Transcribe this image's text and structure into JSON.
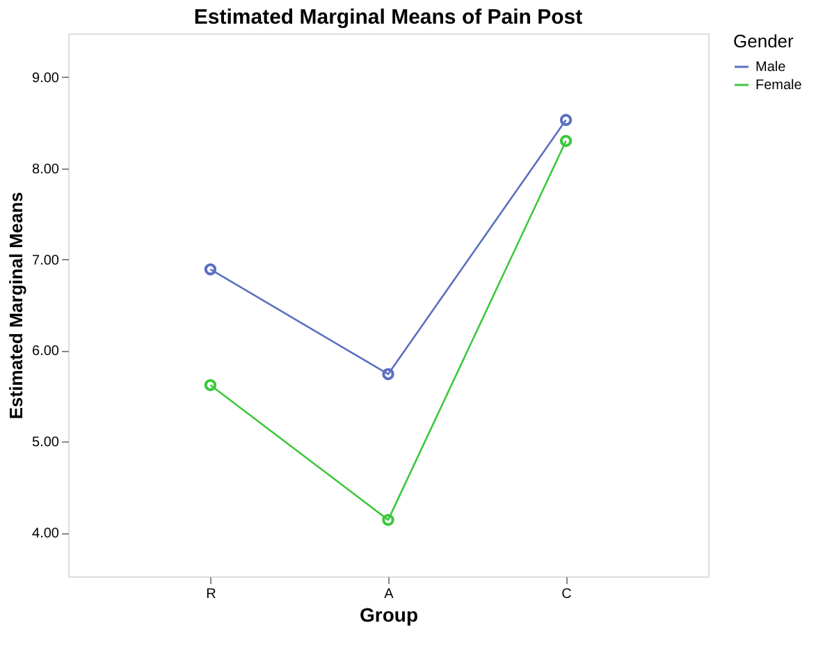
{
  "chart_data": {
    "type": "line",
    "title": "Estimated Marginal Means of Pain Post",
    "xlabel": "Group",
    "ylabel": "Estimated Marginal Means",
    "legend_title": "Gender",
    "categories": [
      "R",
      "A",
      "C"
    ],
    "series": [
      {
        "name": "Male",
        "color": "#5a6fc0",
        "values": [
          6.89,
          5.74,
          8.53
        ]
      },
      {
        "name": "Female",
        "color": "#3cc83c",
        "values": [
          5.62,
          4.14,
          8.3
        ]
      }
    ],
    "ylim": [
      3.52,
      9.48
    ],
    "yticks": [
      {
        "value": 4,
        "label": "4.00"
      },
      {
        "value": 5,
        "label": "5.00"
      },
      {
        "value": 6,
        "label": "6.00"
      },
      {
        "value": 7,
        "label": "7.00"
      },
      {
        "value": 8,
        "label": "8.00"
      },
      {
        "value": 9,
        "label": "9.00"
      }
    ],
    "grid": false,
    "legend": "top right",
    "marker": "circle",
    "line_style": "solid"
  }
}
